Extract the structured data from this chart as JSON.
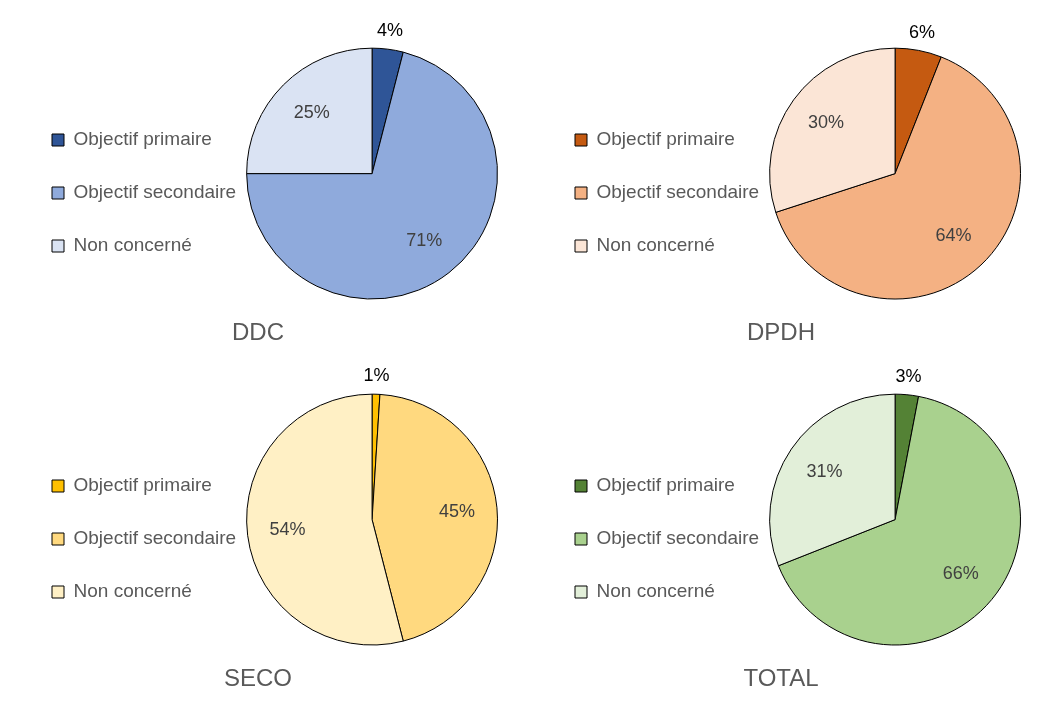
{
  "chart_data": [
    {
      "type": "pie",
      "title": "DDC",
      "categories": [
        "Objectif primaire",
        "Objectif secondaire",
        "Non concerné"
      ],
      "values": [
        4,
        71,
        25
      ],
      "value_labels": [
        "4%",
        "71%",
        "25%"
      ],
      "colors": [
        "#2f5597",
        "#8faadc",
        "#dae3f3"
      ],
      "legend": "left"
    },
    {
      "type": "pie",
      "title": "DPDH",
      "categories": [
        "Objectif primaire",
        "Objectif secondaire",
        "Non concerné"
      ],
      "values": [
        6,
        64,
        30
      ],
      "value_labels": [
        "6%",
        "64%",
        "30%"
      ],
      "colors": [
        "#c55a11",
        "#f4b183",
        "#fbe5d6"
      ],
      "legend": "left"
    },
    {
      "type": "pie",
      "title": "SECO",
      "categories": [
        "Objectif primaire",
        "Objectif secondaire",
        "Non concerné"
      ],
      "values": [
        1,
        45,
        54
      ],
      "value_labels": [
        "1%",
        "45%",
        "54%"
      ],
      "colors": [
        "#ffc000",
        "#ffd97f",
        "#fff0c5"
      ],
      "legend": "left"
    },
    {
      "type": "pie",
      "title": "TOTAL",
      "categories": [
        "Objectif primaire",
        "Objectif secondaire",
        "Non concerné"
      ],
      "values": [
        3,
        66,
        31
      ],
      "value_labels": [
        "3%",
        "66%",
        "31%"
      ],
      "colors": [
        "#548235",
        "#a9d18e",
        "#e2efd9"
      ],
      "legend": "left"
    }
  ]
}
